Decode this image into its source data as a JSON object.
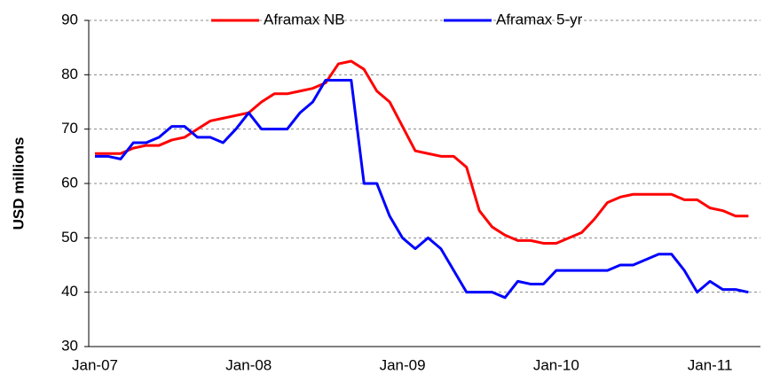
{
  "chart_data": {
    "type": "line",
    "ylabel": "USD millions",
    "categories": [
      "Jan-07",
      null,
      null,
      null,
      null,
      null,
      null,
      null,
      null,
      null,
      null,
      null,
      "Jan-08",
      null,
      null,
      null,
      null,
      null,
      null,
      null,
      null,
      null,
      null,
      null,
      "Jan-09",
      null,
      null,
      null,
      null,
      null,
      null,
      null,
      null,
      null,
      null,
      null,
      "Jan-10",
      null,
      null,
      null,
      null,
      null,
      null,
      null,
      null,
      null,
      null,
      null,
      "Jan-11",
      null,
      null,
      null
    ],
    "series": [
      {
        "name": "Aframax NB",
        "color": "#ff0000",
        "values": [
          65.5,
          65.5,
          65.5,
          66.5,
          67,
          67,
          68,
          68.5,
          70,
          71.5,
          72,
          72.5,
          73,
          75,
          76.5,
          76.5,
          77,
          77.5,
          78.5,
          82,
          82.5,
          81,
          77,
          75,
          70.5,
          66,
          65.5,
          65,
          65,
          63,
          55,
          52,
          50.5,
          49.5,
          49.5,
          49,
          49,
          50,
          51,
          53.5,
          56.5,
          57.5,
          58,
          58,
          58,
          58,
          57,
          57,
          55.5,
          55,
          54,
          54
        ]
      },
      {
        "name": "Aframax 5-yr",
        "color": "#0000ff",
        "values": [
          65,
          65,
          64.5,
          67.5,
          67.5,
          68.5,
          70.5,
          70.5,
          68.5,
          68.5,
          67.5,
          70,
          73,
          70,
          70,
          70,
          73,
          75,
          79,
          79,
          79,
          60,
          60,
          54,
          50,
          48,
          50,
          48,
          44,
          40,
          40,
          40,
          39,
          42,
          41.5,
          41.5,
          44,
          44,
          44,
          44,
          44,
          45,
          45,
          46,
          47,
          47,
          44,
          40,
          42,
          40.5,
          40.5,
          40
        ]
      }
    ],
    "ylim": [
      30,
      90
    ],
    "yticks": [
      30,
      40,
      50,
      60,
      70,
      80,
      90
    ],
    "grid": true,
    "legend": "top"
  }
}
